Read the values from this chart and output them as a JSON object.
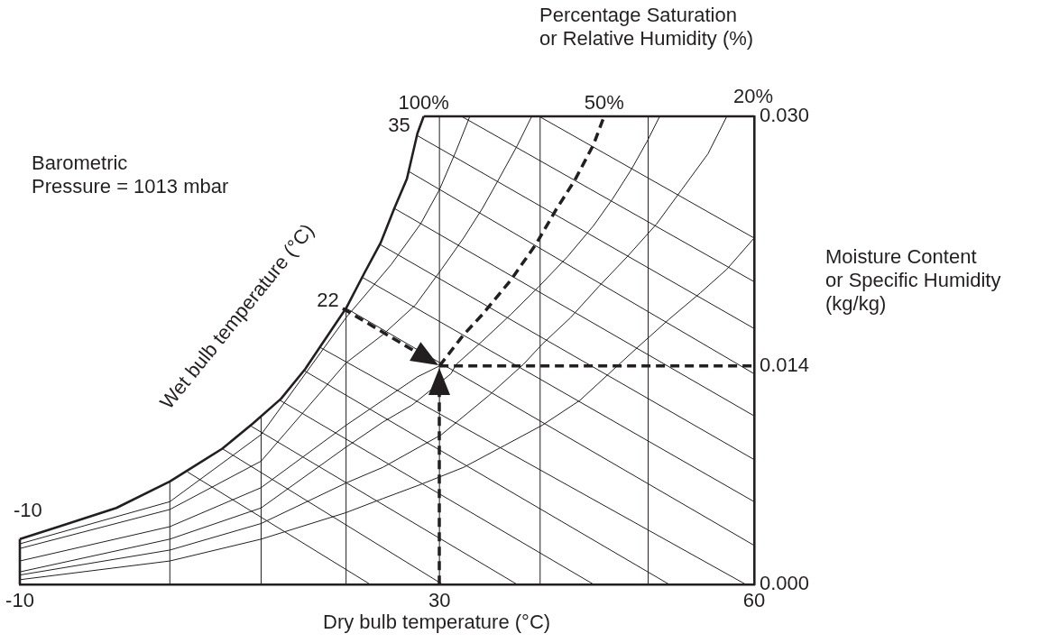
{
  "chart_data": {
    "type": "line",
    "annotations": [
      "Percentage Saturation\nor Relative Humidity (%)",
      "Barometric\nPressure = 1013 mbar",
      {
        "text": "Wet bulb temperature (°C)",
        "x": 21.1,
        "y": 0.0177
      },
      "20%",
      {
        "text": "100%",
        "x": 28.5,
        "y": 0.03
      },
      {
        "text": "50%",
        "x": 45.7,
        "y": 0.03
      },
      {
        "text": "35",
        "x": 27.9,
        "y": 0.0289
      },
      {
        "text": "22",
        "x": 21.1,
        "y": 0.0177
      },
      {
        "text": "-10",
        "x": -10,
        "y": 0.0029
      }
    ],
    "xlabel": "Dry bulb temperature (°C)",
    "ylabel": "Moisture Content\nor Specific Humidity\n(kg/kg)",
    "xlim": [
      -10,
      60
    ],
    "xticks": [
      -10,
      30,
      60
    ],
    "ylim": [
      0,
      0.03
    ],
    "yticks": [
      {
        "value": 0,
        "label": "0.000"
      },
      {
        "value": 0.014,
        "label": "0.014"
      },
      {
        "value": 0.03,
        "label": "0.030"
      }
    ],
    "grid": false,
    "legend": false,
    "marker": "none",
    "ref_lines": [
      {
        "axis": "x",
        "value": 4.3,
        "color": "#231f20"
      },
      {
        "axis": "x",
        "value": 13.0,
        "color": "#231f20"
      },
      {
        "axis": "x",
        "value": 21.1,
        "color": "#231f20"
      },
      {
        "axis": "x",
        "value": 30,
        "color": "#231f20"
      },
      {
        "axis": "x",
        "value": 39.6,
        "color": "#231f20"
      },
      {
        "axis": "x",
        "value": 49.9,
        "color": "#231f20"
      }
    ],
    "series": [
      {
        "color": "#231f20",
        "line_style": "solid",
        "x": [
          -10,
          -6.3,
          -0.8,
          4.3,
          9.3,
          12.2,
          14.9,
          17.2,
          18.8,
          21.1,
          22.8,
          24.4,
          25.7,
          26.9,
          27.9,
          28.5
        ],
        "values": [
          0.0029,
          0.0037,
          0.0049,
          0.0066,
          0.0087,
          0.0103,
          0.0119,
          0.0138,
          0.0154,
          0.0177,
          0.0199,
          0.0219,
          0.0241,
          0.026,
          0.0289,
          0.03
        ]
      },
      {
        "color": "#231f20",
        "line_style": "solid",
        "x": [
          -10,
          4.3,
          13.0,
          21.1,
          25.4,
          28.2,
          30,
          31.6,
          32.9
        ],
        "values": [
          0.0026,
          0.0053,
          0.0096,
          0.0171,
          0.0205,
          0.0231,
          0.0253,
          0.0278,
          0.03
        ]
      },
      {
        "color": "#231f20",
        "line_style": "solid",
        "x": [
          -10,
          4.3,
          13.0,
          21.1,
          24.6,
          27.7,
          30.2,
          32.3,
          34.1,
          35.6,
          37.4,
          38.8
        ],
        "values": [
          0.0023,
          0.0048,
          0.0079,
          0.0142,
          0.016,
          0.0179,
          0.0202,
          0.0222,
          0.0241,
          0.0259,
          0.0281,
          0.03
        ]
      },
      {
        "color": "#231f20",
        "line_style": "solid",
        "x": [
          -10,
          4.3,
          13.0,
          21.1,
          24.6,
          27.9,
          30
        ],
        "values": [
          0.0015,
          0.0037,
          0.0062,
          0.0102,
          0.0118,
          0.0133,
          0.014
        ]
      },
      {
        "color": "#231f20",
        "line_style": "solid",
        "x": [
          -10,
          4.3,
          13.0,
          21.1,
          24.6,
          27.4,
          31.1,
          31.6,
          34.1,
          36.8,
          39.5,
          42.2,
          44.7,
          46.5,
          48.3,
          49.8,
          51.0
        ],
        "values": [
          0.0008,
          0.0029,
          0.0049,
          0.0088,
          0.0104,
          0.0115,
          0.0135,
          0.0141,
          0.0156,
          0.0173,
          0.0191,
          0.021,
          0.023,
          0.0247,
          0.0266,
          0.0284,
          0.03
        ]
      },
      {
        "color": "#231f20",
        "line_style": "solid",
        "x": [
          -10,
          4.3,
          13.0,
          21.1,
          24.6,
          30.2,
          34.7,
          38.0,
          39.8,
          42.5,
          45.2,
          47.9,
          50.7,
          53.1,
          55.6,
          57.4
        ],
        "values": [
          0.0006,
          0.0022,
          0.0039,
          0.0065,
          0.0075,
          0.0096,
          0.0121,
          0.0141,
          0.0154,
          0.0171,
          0.0191,
          0.021,
          0.0231,
          0.0253,
          0.0276,
          0.03
        ]
      },
      {
        "color": "#231f20",
        "line_style": "solid",
        "x": [
          -10,
          4.3,
          13.0,
          21.1,
          24.6,
          28.2,
          32.3,
          36.2,
          39.8,
          43.4,
          48.9,
          51.9,
          54.9,
          57.4,
          60
        ],
        "values": [
          0.0003,
          0.0015,
          0.0029,
          0.0046,
          0.0055,
          0.0064,
          0.0075,
          0.0089,
          0.0102,
          0.0118,
          0.0152,
          0.017,
          0.0187,
          0.0202,
          0.0222
        ]
      },
      {
        "color": "#231f20",
        "line_style": "solid",
        "x": [
          32.1,
          60
        ],
        "values": [
          0.03,
          0.0194
        ]
      },
      {
        "color": "#231f20",
        "line_style": "solid",
        "x": [
          39.5,
          60
        ],
        "values": [
          0.03,
          0.0222
        ]
      },
      {
        "color": "#231f20",
        "line_style": "solid",
        "x": [
          27.8,
          60
        ],
        "values": [
          0.0288,
          0.0164
        ]
      },
      {
        "color": "#231f20",
        "line_style": "solid",
        "x": [
          27.0,
          60
        ],
        "values": [
          0.0265,
          0.0135
        ]
      },
      {
        "color": "#231f20",
        "line_style": "solid",
        "x": [
          25.7,
          60
        ],
        "values": [
          0.0241,
          0.0108
        ]
      },
      {
        "color": "#231f20",
        "line_style": "solid",
        "x": [
          24.3,
          60
        ],
        "values": [
          0.0218,
          0.008
        ]
      },
      {
        "color": "#231f20",
        "line_style": "solid",
        "x": [
          22.6,
          60
        ],
        "values": [
          0.0197,
          0.0053
        ]
      },
      {
        "color": "#231f20",
        "line_style": "solid",
        "x": [
          21.1,
          60
        ],
        "values": [
          0.0177,
          0.0025
        ]
      },
      {
        "color": "#231f20",
        "line_style": "solid",
        "x": [
          18.6,
          59.2
        ],
        "values": [
          0.0152,
          0
        ]
      },
      {
        "color": "#231f20",
        "line_style": "solid",
        "x": [
          17.1,
          51.9
        ],
        "values": [
          0.0137,
          0
        ]
      },
      {
        "color": "#231f20",
        "line_style": "solid",
        "x": [
          14.8,
          44.7
        ],
        "values": [
          0.0118,
          0
        ]
      },
      {
        "color": "#231f20",
        "line_style": "solid",
        "x": [
          11.9,
          37.4
        ],
        "values": [
          0.0102,
          0
        ]
      },
      {
        "color": "#231f20",
        "line_style": "solid",
        "x": [
          9.3,
          30.3
        ],
        "values": [
          0.0087,
          0
        ]
      },
      {
        "color": "#231f20",
        "line_style": "solid",
        "x": [
          6.0,
          23.4
        ],
        "values": [
          0.0072,
          0
        ]
      },
      {
        "color": "#231f20",
        "line_style": "dashed",
        "x": [
          30,
          32.3,
          34.1,
          36.8,
          39.2,
          41.1,
          42.9,
          44.7,
          45.7
        ],
        "values": [
          0.014,
          0.016,
          0.0173,
          0.0195,
          0.0218,
          0.024,
          0.0259,
          0.0282,
          0.03
        ]
      },
      {
        "color": "#231f20",
        "line_style": "dashed",
        "x": [
          30,
          60
        ],
        "values": [
          0.014,
          0.014
        ]
      }
    ]
  }
}
